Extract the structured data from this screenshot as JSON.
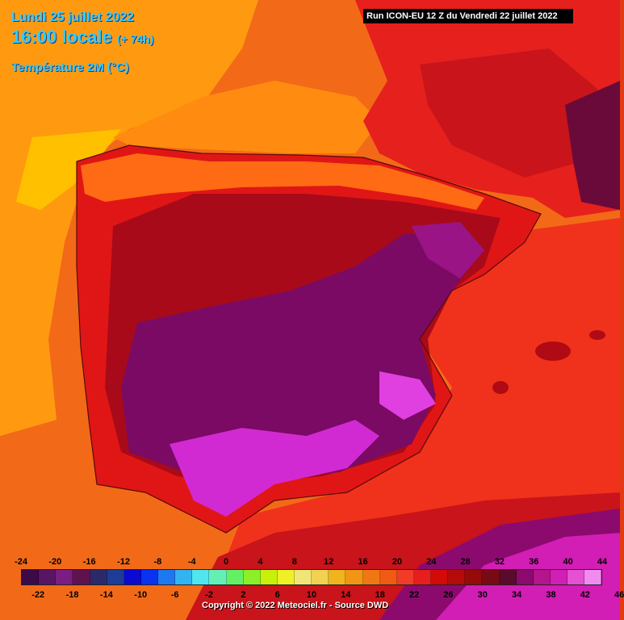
{
  "header": {
    "date": "Lundi 25 juillet 2022",
    "time": "16:00 locale",
    "lead": "(+ 74h)",
    "parameter": "Température 2M (°C)",
    "run": "Run ICON-EU 12 Z du Vendredi 22 juillet 2022"
  },
  "legend": {
    "top_labels": [
      "-24",
      "-20",
      "-16",
      "-12",
      "-8",
      "-4",
      "0",
      "4",
      "8",
      "12",
      "16",
      "20",
      "24",
      "28",
      "32",
      "36",
      "40",
      "44"
    ],
    "bottom_labels": [
      "-22",
      "-18",
      "-14",
      "-10",
      "-6",
      "-2",
      "2",
      "6",
      "10",
      "14",
      "18",
      "22",
      "26",
      "30",
      "34",
      "38",
      "42",
      "46"
    ],
    "colors": [
      "#3c0a46",
      "#5a1464",
      "#7a1e82",
      "#60124e",
      "#2a2a6a",
      "#1e3c96",
      "#0a0ad2",
      "#0a32f0",
      "#1e78f0",
      "#32b4f0",
      "#50e6f0",
      "#64f0b4",
      "#64f064",
      "#8cf028",
      "#c8f00a",
      "#f0f028",
      "#f0e678",
      "#f0d250",
      "#f0b41e",
      "#f09614",
      "#f07814",
      "#f05a14",
      "#f03c28",
      "#e61e1e",
      "#d20a0a",
      "#b40a0a",
      "#960a0a",
      "#780a14",
      "#5a0a2a",
      "#8c0a6e",
      "#b4148c",
      "#d21eb4",
      "#e650d2",
      "#f08cf0"
    ]
  },
  "copyright": "Copyright © 2022 Meteociel.fr - Source DWD"
}
